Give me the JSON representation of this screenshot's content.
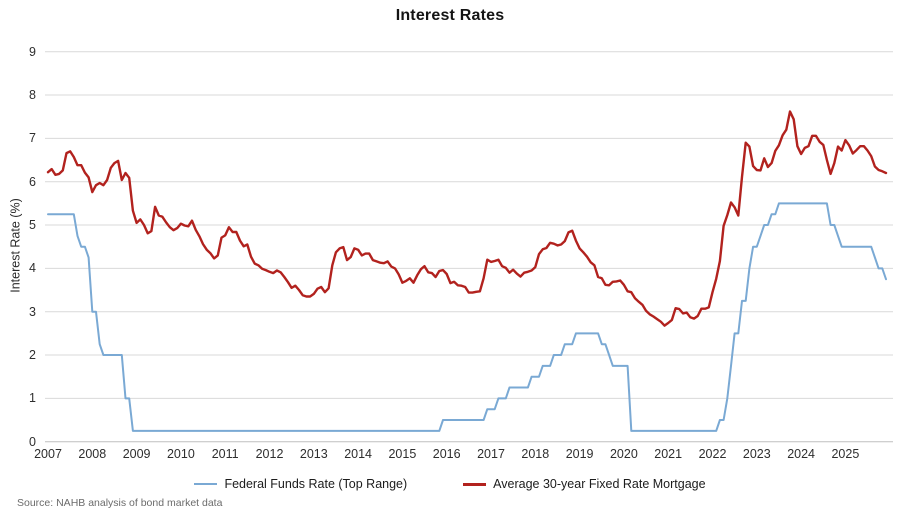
{
  "source_note": "Source: NAHB analysis of bond market data",
  "chart_data": {
    "type": "line",
    "title": "Interest Rates",
    "xlabel": "",
    "ylabel": "Interest Rate (%)",
    "ylim": [
      0,
      9
    ],
    "ytick_step": 1,
    "y_tick_labels": [
      "0",
      "1",
      "2",
      "3",
      "4",
      "5",
      "6",
      "7",
      "8",
      "9"
    ],
    "x_tick_years": [
      "2007",
      "2008",
      "2009",
      "2010",
      "2011",
      "2012",
      "2013",
      "2014",
      "2015",
      "2016",
      "2017",
      "2018",
      "2019",
      "2020",
      "2021",
      "2022",
      "2023",
      "2024",
      "2025"
    ],
    "x_start_year": 2007,
    "points_per_year": 12,
    "grid": "horizontal",
    "legend_position": "bottom",
    "colors": {
      "grid": "#D9D9D9",
      "axis_line": "#BFBFBF"
    },
    "series": [
      {
        "name": "Federal Funds Rate (Top Range)",
        "color": "#7AA9D4",
        "values": [
          5.25,
          5.25,
          5.25,
          5.25,
          5.25,
          5.25,
          5.25,
          5.25,
          4.75,
          4.5,
          4.5,
          4.25,
          3,
          3,
          2.25,
          2,
          2,
          2,
          2,
          2,
          2,
          1,
          1,
          0.25,
          0.25,
          0.25,
          0.25,
          0.25,
          0.25,
          0.25,
          0.25,
          0.25,
          0.25,
          0.25,
          0.25,
          0.25,
          0.25,
          0.25,
          0.25,
          0.25,
          0.25,
          0.25,
          0.25,
          0.25,
          0.25,
          0.25,
          0.25,
          0.25,
          0.25,
          0.25,
          0.25,
          0.25,
          0.25,
          0.25,
          0.25,
          0.25,
          0.25,
          0.25,
          0.25,
          0.25,
          0.25,
          0.25,
          0.25,
          0.25,
          0.25,
          0.25,
          0.25,
          0.25,
          0.25,
          0.25,
          0.25,
          0.25,
          0.25,
          0.25,
          0.25,
          0.25,
          0.25,
          0.25,
          0.25,
          0.25,
          0.25,
          0.25,
          0.25,
          0.25,
          0.25,
          0.25,
          0.25,
          0.25,
          0.25,
          0.25,
          0.25,
          0.25,
          0.25,
          0.25,
          0.25,
          0.25,
          0.25,
          0.25,
          0.25,
          0.25,
          0.25,
          0.25,
          0.25,
          0.25,
          0.25,
          0.25,
          0.25,
          0.5,
          0.5,
          0.5,
          0.5,
          0.5,
          0.5,
          0.5,
          0.5,
          0.5,
          0.5,
          0.5,
          0.5,
          0.75,
          0.75,
          0.75,
          1,
          1,
          1,
          1.25,
          1.25,
          1.25,
          1.25,
          1.25,
          1.25,
          1.5,
          1.5,
          1.5,
          1.75,
          1.75,
          1.75,
          2,
          2,
          2,
          2.25,
          2.25,
          2.25,
          2.5,
          2.5,
          2.5,
          2.5,
          2.5,
          2.5,
          2.5,
          2.25,
          2.25,
          2,
          1.75,
          1.75,
          1.75,
          1.75,
          1.75,
          0.25,
          0.25,
          0.25,
          0.25,
          0.25,
          0.25,
          0.25,
          0.25,
          0.25,
          0.25,
          0.25,
          0.25,
          0.25,
          0.25,
          0.25,
          0.25,
          0.25,
          0.25,
          0.25,
          0.25,
          0.25,
          0.25,
          0.25,
          0.25,
          0.5,
          0.5,
          1,
          1.75,
          2.5,
          2.5,
          3.25,
          3.25,
          4,
          4.5,
          4.5,
          4.75,
          5,
          5,
          5.25,
          5.25,
          5.5,
          5.5,
          5.5,
          5.5,
          5.5,
          5.5,
          5.5,
          5.5,
          5.5,
          5.5,
          5.5,
          5.5,
          5.5,
          5.5,
          5,
          5,
          4.75,
          4.5,
          4.5,
          4.5,
          4.5,
          4.5,
          4.5,
          4.5,
          4.5,
          4.5,
          4.25,
          4,
          4,
          3.75
        ]
      },
      {
        "name": "Average 30-year Fixed Rate Mortgage",
        "color": "#B2221E",
        "values": [
          6.22,
          6.29,
          6.16,
          6.18,
          6.26,
          6.66,
          6.7,
          6.57,
          6.38,
          6.38,
          6.21,
          6.1,
          5.76,
          5.92,
          5.97,
          5.92,
          6.04,
          6.32,
          6.43,
          6.48,
          6.04,
          6.2,
          6.09,
          5.33,
          5.05,
          5.13,
          5.0,
          4.81,
          4.86,
          5.42,
          5.22,
          5.19,
          5.06,
          4.95,
          4.88,
          4.93,
          5.03,
          4.99,
          4.97,
          5.1,
          4.89,
          4.74,
          4.56,
          4.43,
          4.35,
          4.23,
          4.3,
          4.71,
          4.76,
          4.95,
          4.84,
          4.84,
          4.64,
          4.51,
          4.55,
          4.27,
          4.11,
          4.07,
          3.99,
          3.96,
          3.92,
          3.89,
          3.95,
          3.91,
          3.8,
          3.68,
          3.55,
          3.6,
          3.5,
          3.38,
          3.35,
          3.35,
          3.41,
          3.53,
          3.57,
          3.45,
          3.54,
          4.07,
          4.37,
          4.46,
          4.49,
          4.19,
          4.26,
          4.46,
          4.43,
          4.3,
          4.34,
          4.34,
          4.19,
          4.16,
          4.13,
          4.12,
          4.16,
          4.04,
          4.0,
          3.86,
          3.67,
          3.71,
          3.77,
          3.67,
          3.84,
          3.98,
          4.05,
          3.91,
          3.89,
          3.8,
          3.94,
          3.96,
          3.87,
          3.66,
          3.69,
          3.61,
          3.6,
          3.57,
          3.44,
          3.44,
          3.46,
          3.47,
          3.77,
          4.2,
          4.15,
          4.17,
          4.2,
          4.05,
          4.01,
          3.9,
          3.97,
          3.88,
          3.81,
          3.9,
          3.92,
          3.95,
          4.03,
          4.33,
          4.44,
          4.47,
          4.59,
          4.57,
          4.53,
          4.55,
          4.63,
          4.83,
          4.87,
          4.64,
          4.46,
          4.37,
          4.27,
          4.14,
          4.07,
          3.8,
          3.77,
          3.62,
          3.61,
          3.69,
          3.7,
          3.72,
          3.62,
          3.47,
          3.45,
          3.31,
          3.23,
          3.16,
          3.02,
          2.94,
          2.89,
          2.83,
          2.77,
          2.68,
          2.74,
          2.81,
          3.08,
          3.06,
          2.96,
          2.98,
          2.87,
          2.84,
          2.9,
          3.07,
          3.07,
          3.1,
          3.45,
          3.76,
          4.17,
          4.98,
          5.23,
          5.52,
          5.41,
          5.22,
          6.11,
          6.9,
          6.81,
          6.36,
          6.27,
          6.26,
          6.54,
          6.34,
          6.43,
          6.71,
          6.84,
          7.07,
          7.2,
          7.62,
          7.44,
          6.82,
          6.64,
          6.78,
          6.82,
          7.06,
          7.06,
          6.92,
          6.85,
          6.5,
          6.18,
          6.43,
          6.81,
          6.72,
          6.96,
          6.84,
          6.65,
          6.73,
          6.82,
          6.82,
          6.72,
          6.59,
          6.35,
          6.27,
          6.24,
          6.2
        ]
      }
    ]
  }
}
